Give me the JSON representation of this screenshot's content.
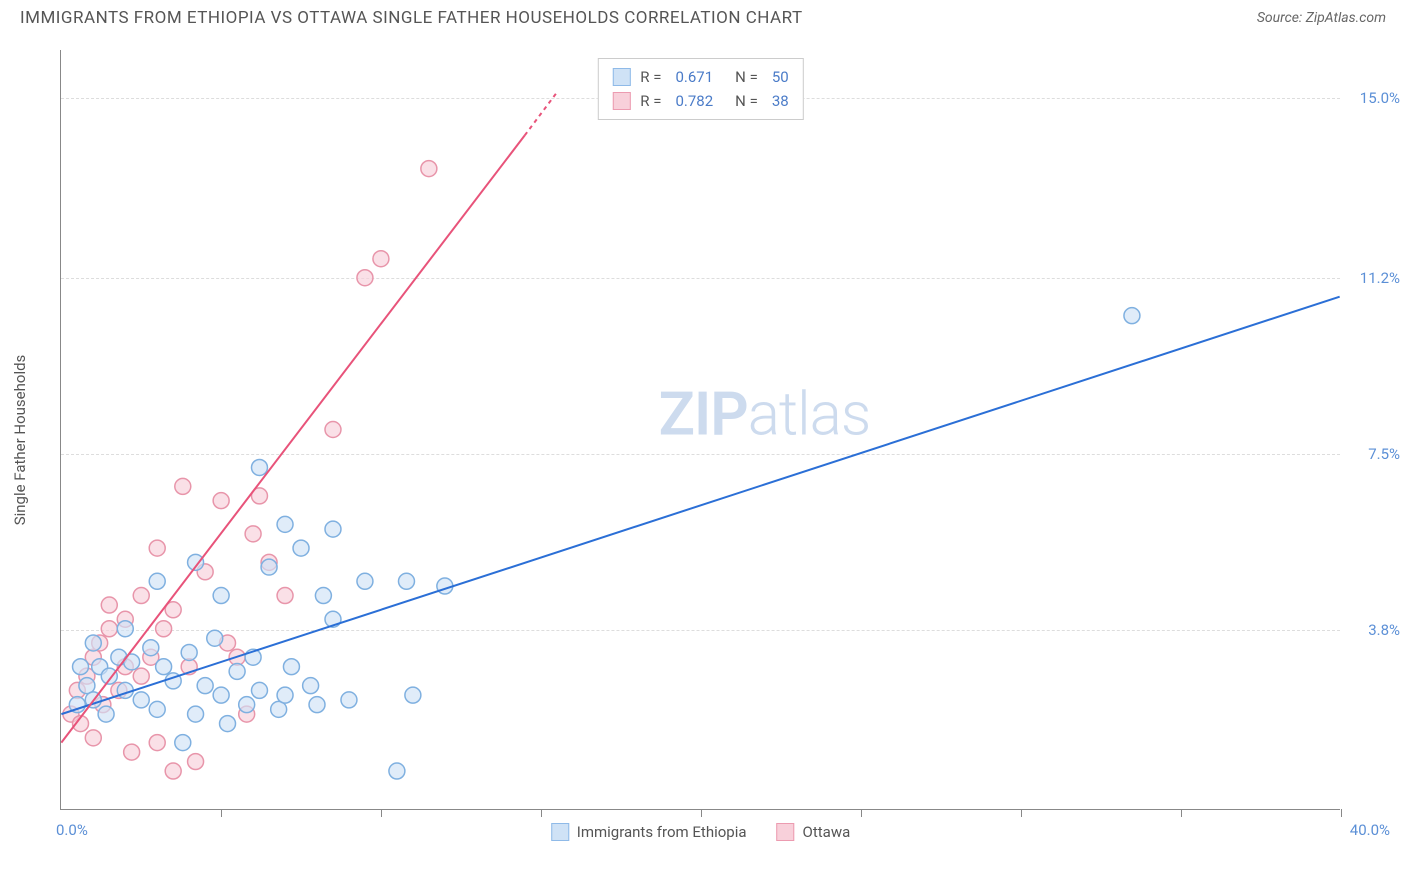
{
  "header": {
    "title": "IMMIGRANTS FROM ETHIOPIA VS OTTAWA SINGLE FATHER HOUSEHOLDS CORRELATION CHART",
    "source": "Source: ZipAtlas.com"
  },
  "axes": {
    "y_label": "Single Father Households",
    "x_min_label": "0.0%",
    "x_max_label": "40.0%",
    "y_gridlines": [
      {
        "value": 3.8,
        "label": "3.8%"
      },
      {
        "value": 7.5,
        "label": "7.5%"
      },
      {
        "value": 11.2,
        "label": "11.2%"
      },
      {
        "value": 15.0,
        "label": "15.0%"
      }
    ],
    "x_ticks": [
      5,
      10,
      15,
      20,
      25,
      30,
      35,
      40
    ],
    "xlim": [
      0,
      40
    ],
    "ylim": [
      0,
      16
    ]
  },
  "legend_stats": {
    "series": [
      {
        "color_fill": "#cfe2f6",
        "color_stroke": "#8fbae8",
        "r_label": "R =",
        "r_value": "0.671",
        "n_label": "N =",
        "n_value": "50"
      },
      {
        "color_fill": "#f8d0da",
        "color_stroke": "#ec9bb0",
        "r_label": "R =",
        "r_value": "0.782",
        "n_label": "N =",
        "n_value": "38"
      }
    ]
  },
  "bottom_legend": {
    "items": [
      {
        "color_fill": "#cfe2f6",
        "color_stroke": "#8fbae8",
        "label": "Immigrants from Ethiopia"
      },
      {
        "color_fill": "#f8d0da",
        "color_stroke": "#ec9bb0",
        "label": "Ottawa"
      }
    ]
  },
  "watermark": {
    "text_bold": "ZIP",
    "text_light": "atlas"
  },
  "chart": {
    "type": "scatter",
    "background_color": "#ffffff",
    "grid_color": "#dddddd",
    "marker_radius": 8,
    "marker_opacity": 0.65,
    "series_blue": {
      "fill": "#cfe2f6",
      "stroke": "#7fb0e0",
      "trend_color": "#2b6fd6",
      "trend_width": 2,
      "trend": {
        "x1": 0,
        "y1": 2.0,
        "x2": 40,
        "y2": 10.8
      },
      "points": [
        [
          0.5,
          2.2
        ],
        [
          0.8,
          2.6
        ],
        [
          1.0,
          2.3
        ],
        [
          1.2,
          3.0
        ],
        [
          1.4,
          2.0
        ],
        [
          1.5,
          2.8
        ],
        [
          1.8,
          3.2
        ],
        [
          2.0,
          2.5
        ],
        [
          2.2,
          3.1
        ],
        [
          2.5,
          2.3
        ],
        [
          2.8,
          3.4
        ],
        [
          3.0,
          2.1
        ],
        [
          3.2,
          3.0
        ],
        [
          3.5,
          2.7
        ],
        [
          3.8,
          1.4
        ],
        [
          4.0,
          3.3
        ],
        [
          4.2,
          2.0
        ],
        [
          4.5,
          2.6
        ],
        [
          4.8,
          3.6
        ],
        [
          5.0,
          2.4
        ],
        [
          5.2,
          1.8
        ],
        [
          5.5,
          2.9
        ],
        [
          5.8,
          2.2
        ],
        [
          6.0,
          3.2
        ],
        [
          6.2,
          2.5
        ],
        [
          6.5,
          5.1
        ],
        [
          6.8,
          2.1
        ],
        [
          7.0,
          2.4
        ],
        [
          7.2,
          3.0
        ],
        [
          7.5,
          5.5
        ],
        [
          7.8,
          2.6
        ],
        [
          8.0,
          2.2
        ],
        [
          8.2,
          4.5
        ],
        [
          8.5,
          5.9
        ],
        [
          9.0,
          2.3
        ],
        [
          9.5,
          4.8
        ],
        [
          10.5,
          0.8
        ],
        [
          10.8,
          4.8
        ],
        [
          11.0,
          2.4
        ],
        [
          12.0,
          4.7
        ],
        [
          6.2,
          7.2
        ],
        [
          7.0,
          6.0
        ],
        [
          8.5,
          4.0
        ],
        [
          3.0,
          4.8
        ],
        [
          4.2,
          5.2
        ],
        [
          5.0,
          4.5
        ],
        [
          2.0,
          3.8
        ],
        [
          1.0,
          3.5
        ],
        [
          0.6,
          3.0
        ],
        [
          33.5,
          10.4
        ]
      ]
    },
    "series_pink": {
      "fill": "#f8d0da",
      "stroke": "#e895aa",
      "trend_color": "#e8537a",
      "trend_width": 2,
      "trend_solid": {
        "x1": 0,
        "y1": 1.4,
        "x2": 14.5,
        "y2": 14.2
      },
      "trend_dash": {
        "x1": 14.5,
        "y1": 14.2,
        "x2": 15.5,
        "y2": 15.1
      },
      "points": [
        [
          0.3,
          2.0
        ],
        [
          0.5,
          2.5
        ],
        [
          0.6,
          1.8
        ],
        [
          0.8,
          2.8
        ],
        [
          1.0,
          3.2
        ],
        [
          1.0,
          1.5
        ],
        [
          1.2,
          3.5
        ],
        [
          1.3,
          2.2
        ],
        [
          1.5,
          3.8
        ],
        [
          1.5,
          4.3
        ],
        [
          1.8,
          2.5
        ],
        [
          2.0,
          3.0
        ],
        [
          2.0,
          4.0
        ],
        [
          2.2,
          1.2
        ],
        [
          2.5,
          2.8
        ],
        [
          2.5,
          4.5
        ],
        [
          2.8,
          3.2
        ],
        [
          3.0,
          1.4
        ],
        [
          3.0,
          5.5
        ],
        [
          3.2,
          3.8
        ],
        [
          3.5,
          4.2
        ],
        [
          3.5,
          0.8
        ],
        [
          3.8,
          6.8
        ],
        [
          4.0,
          3.0
        ],
        [
          4.2,
          1.0
        ],
        [
          4.5,
          5.0
        ],
        [
          5.0,
          6.5
        ],
        [
          5.2,
          3.5
        ],
        [
          5.5,
          3.2
        ],
        [
          6.0,
          5.8
        ],
        [
          6.2,
          6.6
        ],
        [
          6.5,
          5.2
        ],
        [
          7.0,
          4.5
        ],
        [
          8.5,
          8.0
        ],
        [
          9.5,
          11.2
        ],
        [
          10.0,
          11.6
        ],
        [
          11.5,
          13.5
        ],
        [
          5.8,
          2.0
        ]
      ]
    }
  }
}
